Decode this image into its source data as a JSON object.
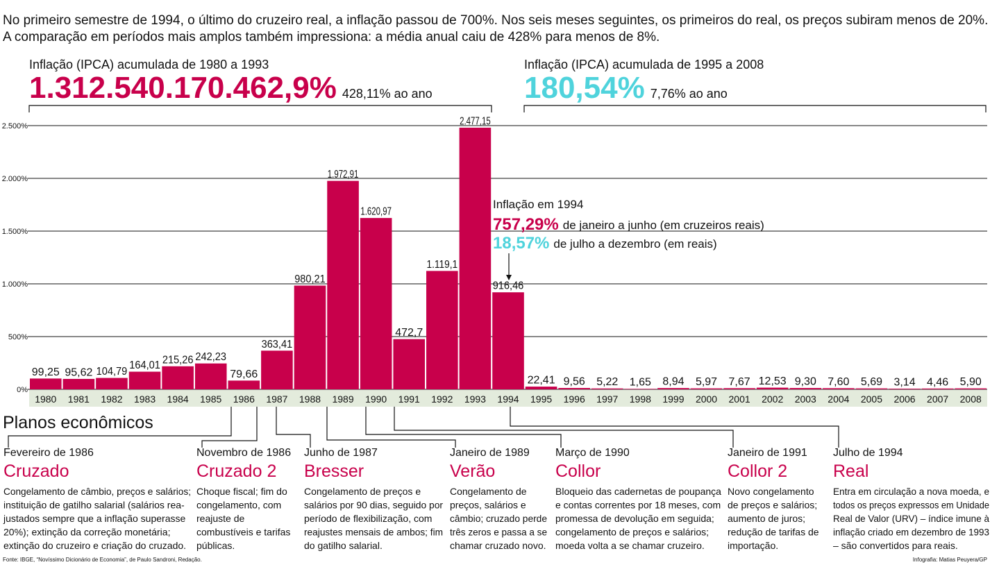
{
  "intro": [
    "No primeiro semestre de 1994, o último do cruzeiro real, a inflação passou de 700%. Nos seis meses seguintes, os primeiros do real, os preços subiram menos de 20%.",
    "A comparação em períodos mais amplos também impressiona: a média anual caiu de 428% para menos de 8%."
  ],
  "summary": [
    {
      "label": "Inflação (IPCA) acumulada de 1980 a 1993",
      "total": "1.312.540.170.462,9%",
      "annual": "428,11% ao ano",
      "color": "#c8004b"
    },
    {
      "label": "Inflação (IPCA) acumulada de 1995 a 2008",
      "total": "180,54%",
      "annual": "7,76% ao ano",
      "color": "#4fd3dc"
    }
  ],
  "chart_data": {
    "type": "bar",
    "categories": [
      "1980",
      "1981",
      "1982",
      "1983",
      "1984",
      "1985",
      "1986",
      "1987",
      "1988",
      "1989",
      "1990",
      "1991",
      "1992",
      "1993",
      "1994",
      "1995",
      "1996",
      "1997",
      "1998",
      "1999",
      "2000",
      "2001",
      "2002",
      "2003",
      "2004",
      "2005",
      "2006",
      "2007",
      "2008"
    ],
    "values": [
      99.25,
      95.62,
      104.79,
      164.01,
      215.26,
      242.23,
      79.66,
      363.41,
      980.21,
      1972.91,
      1620.97,
      472.7,
      1119.1,
      2477.15,
      916.46,
      22.41,
      9.56,
      5.22,
      1.65,
      8.94,
      5.97,
      7.67,
      12.53,
      9.3,
      7.6,
      5.69,
      3.14,
      4.46,
      5.9
    ],
    "value_labels": [
      "99,25",
      "95,62",
      "104,79",
      "164,01",
      "215,26",
      "242,23",
      "79,66",
      "363,41",
      "980,21",
      "1.972,91",
      "1.620,97",
      "472,7",
      "1.119,1",
      "2.477,15",
      "916,46",
      "22,41",
      "9,56",
      "5,22",
      "1,65",
      "8,94",
      "5,97",
      "7,67",
      "12,53",
      "9,30",
      "7,60",
      "5,69",
      "3,14",
      "4,46",
      "5,90"
    ],
    "color": "#c8004b",
    "ylim": [
      0,
      2500
    ],
    "yticks": [
      {
        "value": 0,
        "label": "0%"
      },
      {
        "value": 500,
        "label": "500%"
      },
      {
        "value": 1000,
        "label": "1.000%"
      },
      {
        "value": 1500,
        "label": "1.500%"
      },
      {
        "value": 2000,
        "label": "2.000%"
      },
      {
        "value": 2500,
        "label": "2.500%"
      }
    ],
    "grid": true,
    "annotation": {
      "title": "Inflação em 1994",
      "first_value": "757,29%",
      "first_text": "de janeiro a junho (em cruzeiros reais)",
      "second_value": "18,57%",
      "second_text": "de julho a dezembro (em reais)"
    }
  },
  "plans": {
    "title": "Planos econômicos",
    "items": [
      {
        "date": "Fevereiro de 1986",
        "name": "Cruzado",
        "lines": [
          "Congelamento de câmbio, preços e salários;",
          "instituição de gatilho salarial (salários rea-",
          "justados sempre que a inflação superasse",
          "20%); extinção da correção monetária;",
          "extinção do cruzeiro e criação do cruzado."
        ]
      },
      {
        "date": "Novembro de 1986",
        "name": "Cruzado 2",
        "lines": [
          "Choque fiscal; fim do",
          "congelamento, com",
          "reajuste de",
          "combustíveis e tarifas",
          "públicas."
        ]
      },
      {
        "date": "Junho de 1987",
        "name": "Bresser",
        "lines": [
          "Congelamento de preços e",
          "salários por 90 dias, seguido por",
          "período de flexibilização, com",
          "reajustes mensais de ambos; fim",
          "do gatilho salarial."
        ]
      },
      {
        "date": "Janeiro de 1989",
        "name": "Verão",
        "lines": [
          "Congelamento de",
          "preços, salários e",
          "câmbio; cruzado perde",
          "três zeros e passa a se",
          "chamar cruzado novo."
        ]
      },
      {
        "date": "Março de 1990",
        "name": "Collor",
        "lines": [
          "Bloqueio das cadernetas de poupança",
          "e contas correntes por 18 meses, com",
          "promessa de devolução em seguida;",
          "congelamento de preços e salários;",
          "moeda volta a se chamar cruzeiro."
        ]
      },
      {
        "date": "Janeiro de 1991",
        "name": "Collor 2",
        "lines": [
          "Novo congelamento",
          "de preços e salários;",
          "aumento de juros;",
          "redução de tarifas de",
          "importação."
        ]
      },
      {
        "date": "Julho de 1994",
        "name": "Real",
        "lines": [
          "Entra em circulação a nova moeda, e",
          "todos os preços expressos em Unidade",
          "Real de Valor (URV) – índice imune à",
          "inflação criado em dezembro de 1993",
          "– são convertidos para reais."
        ]
      }
    ]
  },
  "footer": {
    "source": "Fonte: IBGE, “Novíssimo Dicionário de Economia”, de Paulo Sandroni, Redação.",
    "credit": "Infografia: Matias Peuyera/GP"
  }
}
